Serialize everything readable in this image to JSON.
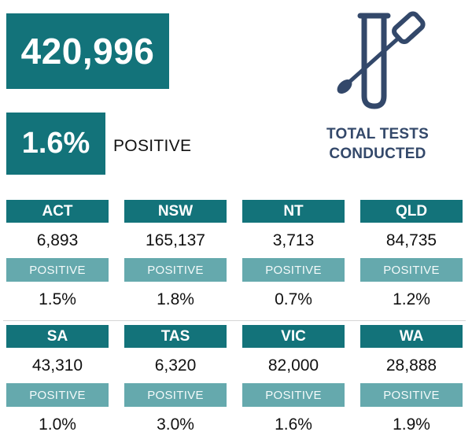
{
  "summary": {
    "total_tests": "420,996",
    "positive_rate": "1.6%",
    "positive_label": "POSITIVE",
    "caption_line1": "TOTAL TESTS",
    "caption_line2": "CONDUCTED",
    "icon": "test-tube-swab-icon"
  },
  "colors": {
    "primary": "#13737a",
    "secondary": "#65a9ad",
    "caption": "#33486a"
  },
  "states": [
    {
      "name": "ACT",
      "tests": "6,893",
      "positive_label": "POSITIVE",
      "positive": "1.5%"
    },
    {
      "name": "NSW",
      "tests": "165,137",
      "positive_label": "POSITIVE",
      "positive": "1.8%"
    },
    {
      "name": "NT",
      "tests": "3,713",
      "positive_label": "POSITIVE",
      "positive": "0.7%"
    },
    {
      "name": "QLD",
      "tests": "84,735",
      "positive_label": "POSITIVE",
      "positive": "1.2%"
    },
    {
      "name": "SA",
      "tests": "43,310",
      "positive_label": "POSITIVE",
      "positive": "1.0%"
    },
    {
      "name": "TAS",
      "tests": "6,320",
      "positive_label": "POSITIVE",
      "positive": "3.0%"
    },
    {
      "name": "VIC",
      "tests": "82,000",
      "positive_label": "POSITIVE",
      "positive": "1.6%"
    },
    {
      "name": "WA",
      "tests": "28,888",
      "positive_label": "POSITIVE",
      "positive": "1.9%"
    }
  ]
}
